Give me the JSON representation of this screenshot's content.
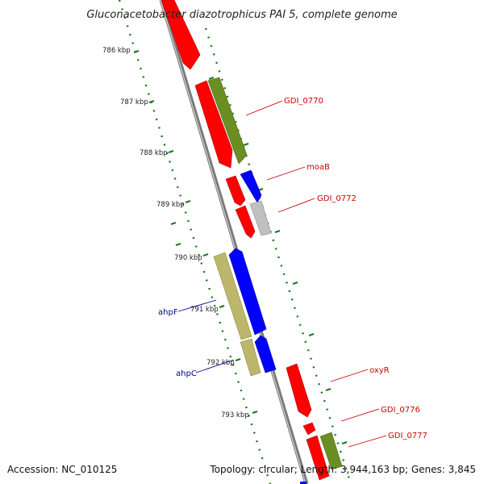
{
  "title": "Gluconacetobacter diazotrophicus PAI 5, complete genome",
  "accession": "Accession: NC_010125",
  "summary": "Topology: circular; Length: 3,944,163 bp; Genes: 3,845",
  "ticks": [
    "786 kbp",
    "787 kbp",
    "788 kbp",
    "789 kbp",
    "790 kbp",
    "791 kbp",
    "792 kbp",
    "793 kbp"
  ],
  "gene_labels": [
    "GDI_0770",
    "moaB",
    "GDI_0772",
    "ahpF",
    "ahpC",
    "oxyR",
    "GDI_0776",
    "GDI_0777"
  ],
  "colors": {
    "forward_label": "#cc0000",
    "reverse_label": "#000099",
    "cds_red": "#ff0000",
    "cds_olive": "#6b8e23",
    "cds_blue": "#0000ff",
    "cds_khaki": "#bdb76b",
    "cds_grey": "#c0c0c0",
    "backbone": "#7a7a7a",
    "gc_dots": "#1a7a1a"
  }
}
